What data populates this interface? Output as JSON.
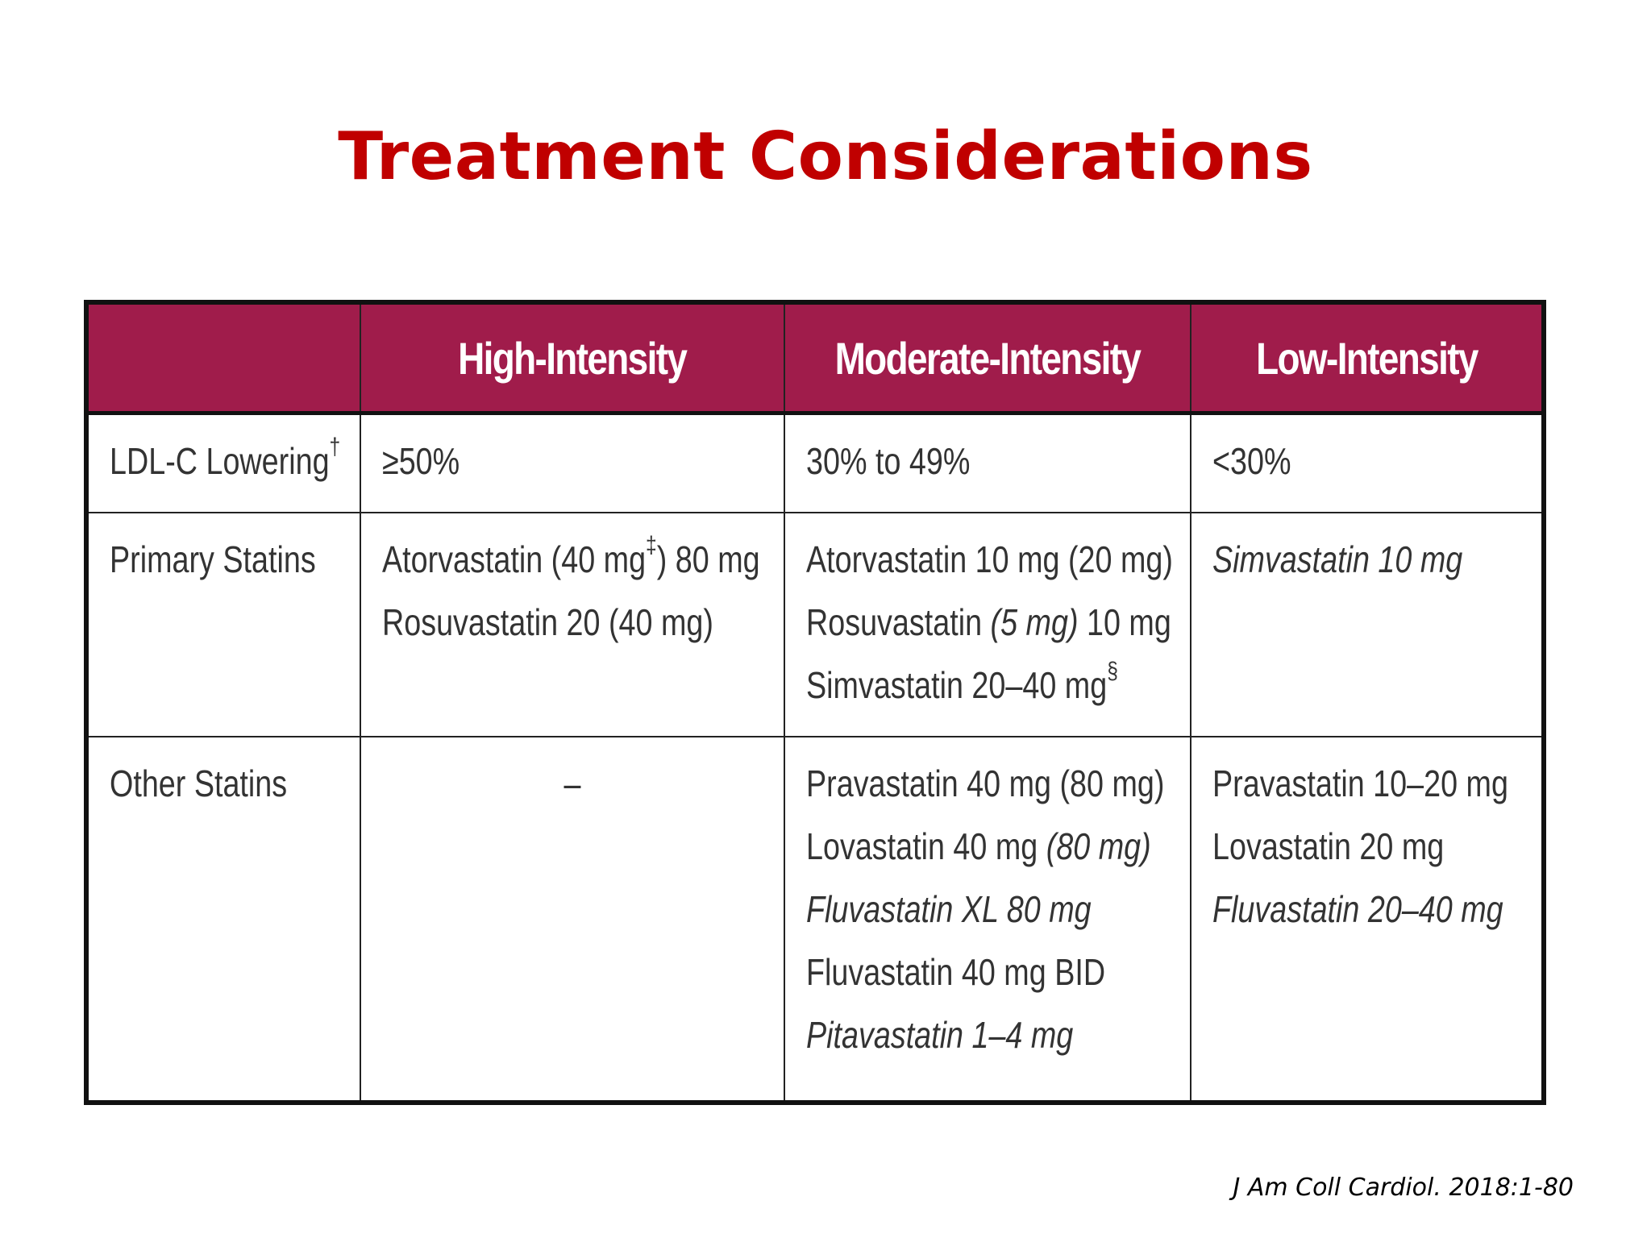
{
  "title": "Treatment Considerations",
  "table": {
    "headers": [
      "",
      "High-Intensity",
      "Moderate-Intensity",
      "Low-Intensity"
    ],
    "rows": [
      {
        "label": "LDL-C Lowering",
        "label_sup": "†",
        "cells": [
          [
            {
              "text": "≥50%"
            }
          ],
          [
            {
              "text": "30% to 49%"
            }
          ],
          [
            {
              "text": "<30%"
            }
          ]
        ]
      },
      {
        "label": "Primary Statins",
        "cells": [
          [
            {
              "pre": "Atorvastatin (40 mg",
              "sup": "‡",
              "post": ") 80 mg"
            },
            {
              "text": "Rosuvastatin 20 (40 mg)"
            }
          ],
          [
            {
              "text": "Atorvastatin 10 mg (20 mg)"
            },
            {
              "pre": "Rosuvastatin ",
              "em": "(5 mg)",
              "post": " 10 mg"
            },
            {
              "pre": "Simvastatin 20–40 mg",
              "sup": "§"
            }
          ],
          [
            {
              "text": "Simvastatin 10 mg",
              "italic": true
            }
          ]
        ]
      },
      {
        "label": "Other Statins",
        "cells": [
          [
            {
              "text": "–"
            }
          ],
          [
            {
              "text": "Pravastatin 40 mg (80 mg)"
            },
            {
              "pre": "Lovastatin 40 mg ",
              "em": "(80 mg)"
            },
            {
              "text": "Fluvastatin XL 80 mg",
              "italic": true
            },
            {
              "text": "Fluvastatin 40 mg BID"
            },
            {
              "text": "Pitavastatin 1–4 mg",
              "italic": true
            }
          ],
          [
            {
              "text": "Pravastatin 10–20 mg"
            },
            {
              "text": "Lovastatin 20 mg"
            },
            {
              "text": "Fluvastatin 20–40 mg",
              "italic": true
            }
          ]
        ]
      }
    ]
  },
  "citation": "J Am Coll Cardiol. 2018:1-80"
}
